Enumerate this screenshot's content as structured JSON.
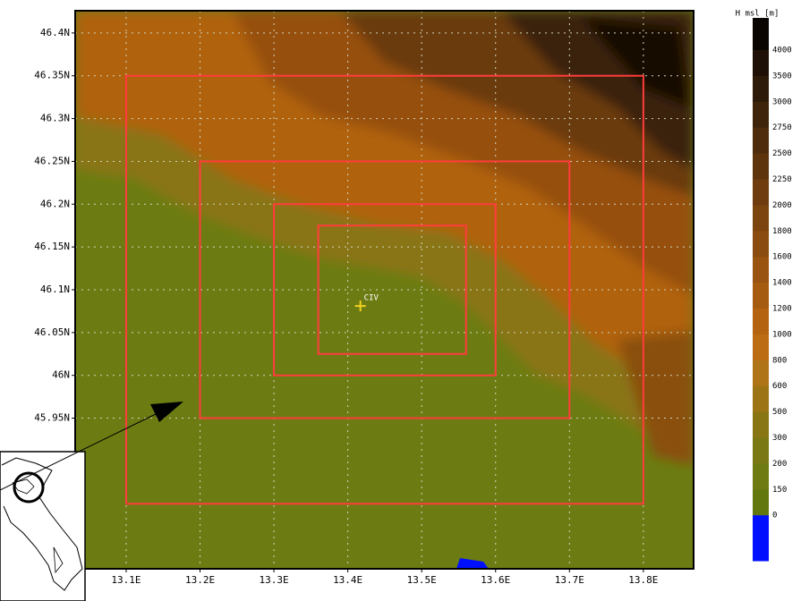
{
  "map": {
    "lonlim": [
      13.031,
      13.868
    ],
    "latlim": [
      45.774,
      46.426
    ],
    "lon_ticks": [
      {
        "value": 13.1,
        "label": "13.1E"
      },
      {
        "value": 13.2,
        "label": "13.2E"
      },
      {
        "value": 13.3,
        "label": "13.3E"
      },
      {
        "value": 13.4,
        "label": "13.4E"
      },
      {
        "value": 13.5,
        "label": "13.5E"
      },
      {
        "value": 13.6,
        "label": "13.6E"
      },
      {
        "value": 13.7,
        "label": "13.7E"
      },
      {
        "value": 13.8,
        "label": "13.8E"
      }
    ],
    "lat_ticks": [
      {
        "value": 46.4,
        "label": "46.4N"
      },
      {
        "value": 46.35,
        "label": "46.35N"
      },
      {
        "value": 46.3,
        "label": "46.3N"
      },
      {
        "value": 46.25,
        "label": "46.25N"
      },
      {
        "value": 46.2,
        "label": "46.2N"
      },
      {
        "value": 46.15,
        "label": "46.15N"
      },
      {
        "value": 46.1,
        "label": "46.1N"
      },
      {
        "value": 46.05,
        "label": "46.05N"
      },
      {
        "value": 46,
        "label": "46N"
      },
      {
        "value": 45.95,
        "label": "45.95N"
      }
    ],
    "domains": [
      {
        "lon": [
          13.1,
          13.8
        ],
        "lat": [
          45.85,
          46.35
        ]
      },
      {
        "lon": [
          13.2,
          13.7
        ],
        "lat": [
          45.95,
          46.25
        ]
      },
      {
        "lon": [
          13.3,
          13.6
        ],
        "lat": [
          46.0,
          46.2
        ]
      },
      {
        "lon": [
          13.36,
          13.56
        ],
        "lat": [
          46.025,
          46.175
        ]
      }
    ],
    "domain_color": "#ff3c3c",
    "station": {
      "label": "CIV",
      "lon": 13.417,
      "lat": 46.081,
      "color": "#f0d020"
    },
    "colorbar": {
      "title": "H msl [m]",
      "levels": [
        4000,
        3500,
        3000,
        2750,
        2500,
        2250,
        2000,
        1800,
        1600,
        1400,
        1200,
        1000,
        800,
        600,
        500,
        300,
        200,
        150,
        0
      ],
      "colors": [
        "#0a0500",
        "#1e1006",
        "#2e1a08",
        "#3e240a",
        "#4e2c0c",
        "#5e340c",
        "#6e3c0e",
        "#7c440e",
        "#8a4c10",
        "#985410",
        "#a65c10",
        "#b46410",
        "#bc6c12",
        "#b07418",
        "#9c7416",
        "#887614",
        "#7a7814",
        "#6e7a12",
        "#62780e",
        "#0010ff"
      ]
    }
  }
}
